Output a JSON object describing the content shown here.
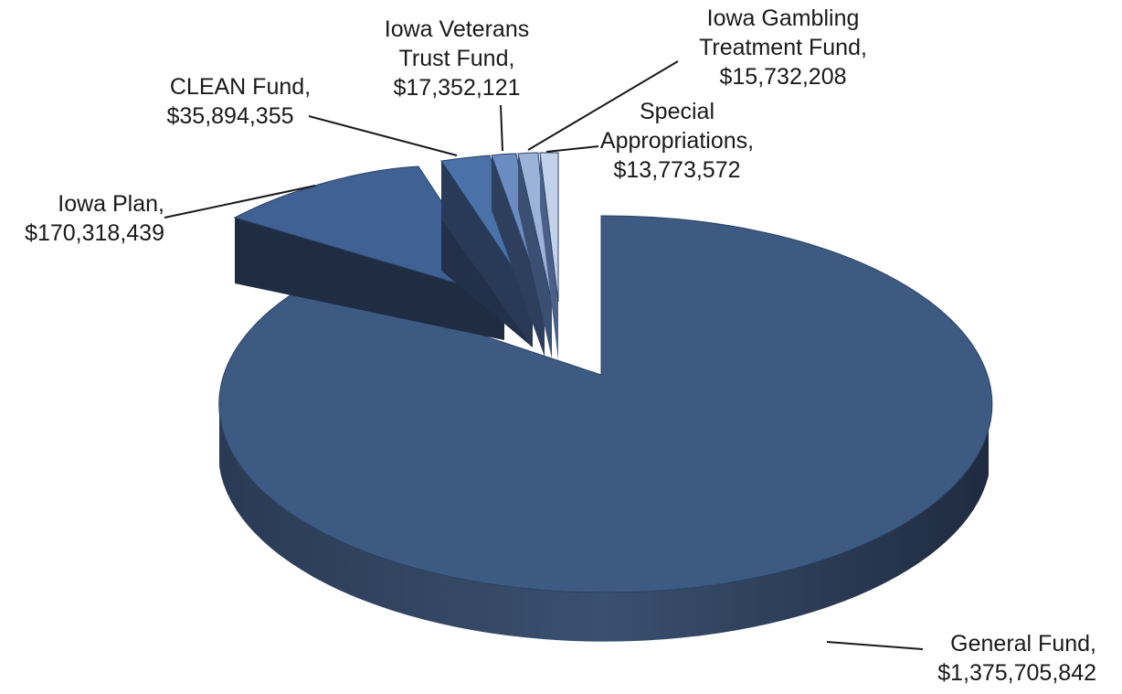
{
  "chart_data": {
    "type": "pie",
    "style": "3d-exploded",
    "title": "",
    "slices": [
      {
        "name_line1": "General Fund,",
        "name_line2": "",
        "value_text": "$1,375,705,842",
        "value": 1375705842,
        "color": "#3d5a82"
      },
      {
        "name_line1": "Iowa Plan,",
        "name_line2": "",
        "value_text": "$170,318,439",
        "value": 170318439,
        "color": "#3f6193"
      },
      {
        "name_line1": "CLEAN Fund,",
        "name_line2": "",
        "value_text": "$35,894,355",
        "value": 35894355,
        "color": "#4a72a8"
      },
      {
        "name_line1": "Iowa Veterans",
        "name_line2": "Trust Fund,",
        "value_text": "$17,352,121",
        "value": 17352121,
        "color": "#6b8cc0"
      },
      {
        "name_line1": "Iowa Gambling",
        "name_line2": "Treatment Fund,",
        "value_text": "$15,732,208",
        "value": 15732208,
        "color": "#9db2d8"
      },
      {
        "name_line1": "",
        "name_line2": "Special",
        "value_text": "Appropriations,",
        "value3_text": "$13,773,572",
        "value": 13773572,
        "color": "#c3d1ea"
      }
    ]
  }
}
